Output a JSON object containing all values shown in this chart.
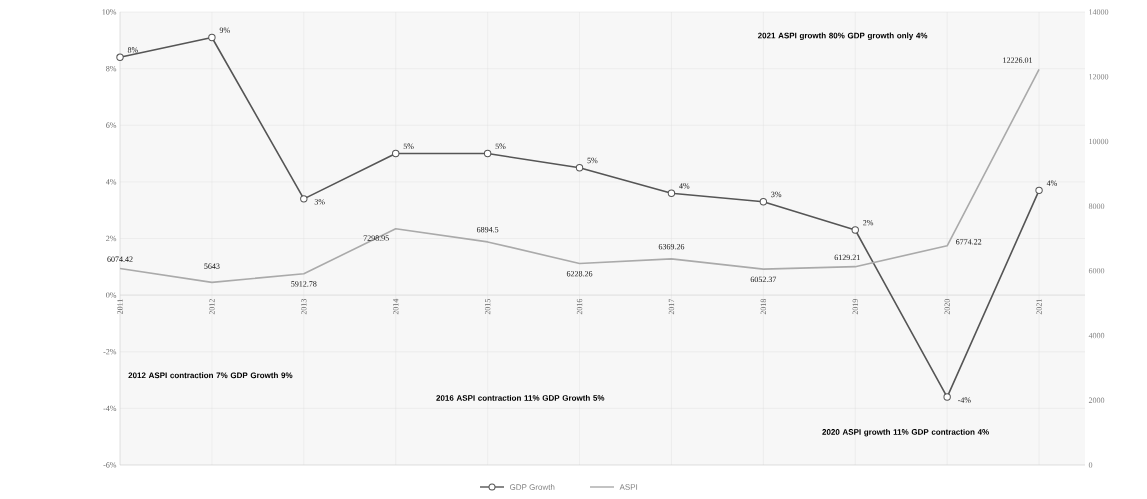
{
  "chart_data": {
    "type": "line",
    "categories": [
      "2011",
      "2012",
      "2013",
      "2014",
      "2015",
      "2016",
      "2017",
      "2018",
      "2019",
      "2020",
      "2021"
    ],
    "series": [
      {
        "name": "GDP Growth",
        "color": "#555555",
        "marker": "circle",
        "values": [
          8.4,
          9.1,
          3.4,
          5.0,
          5.0,
          4.5,
          3.6,
          3.3,
          2.3,
          -3.6,
          3.7
        ],
        "value_labels": [
          "8%",
          "9%",
          "3%",
          "5%",
          "5%",
          "5%",
          "4%",
          "3%",
          "2%",
          "-4%",
          "4%"
        ]
      },
      {
        "name": "ASPI",
        "color": "#aaaaaa",
        "marker": "none",
        "axis": "y2",
        "values": [
          6074.42,
          5643,
          5912.78,
          7298.95,
          6894.5,
          6228.26,
          6369.26,
          6052.37,
          6129.21,
          6774.22,
          12226.01
        ],
        "value_labels": [
          "6074.42",
          "5643",
          "5912.78",
          "7298.95",
          "6894.5",
          "6228.26",
          "6369.26",
          "6052.37",
          "6129.21",
          "6774.22",
          "12226.01"
        ]
      }
    ],
    "ylim": [
      -6,
      10
    ],
    "yticks": [
      {
        "value": -6,
        "label": "-6%"
      },
      {
        "value": -4,
        "label": "-4%"
      },
      {
        "value": -2,
        "label": "-2%"
      },
      {
        "value": 0,
        "label": "0%"
      },
      {
        "value": 2,
        "label": "2%"
      },
      {
        "value": 4,
        "label": "4%"
      },
      {
        "value": 6,
        "label": "6%"
      },
      {
        "value": 8,
        "label": "8%"
      },
      {
        "value": 10,
        "label": "10%"
      }
    ],
    "y2lim": [
      0,
      14000
    ],
    "y2ticks": [
      0,
      2000,
      4000,
      6000,
      8000,
      10000,
      12000,
      14000
    ],
    "grid": true,
    "legend": "bottom",
    "annotations": [
      "2012 ASPI contraction 7% GDP Growth 9%",
      "2016 ASPI contraction 11% GDP Growth 5%",
      "2020 ASPI growth 11% GDP contraction 4%",
      "2021 ASPI growth 80% GDP growth only 4%"
    ]
  }
}
